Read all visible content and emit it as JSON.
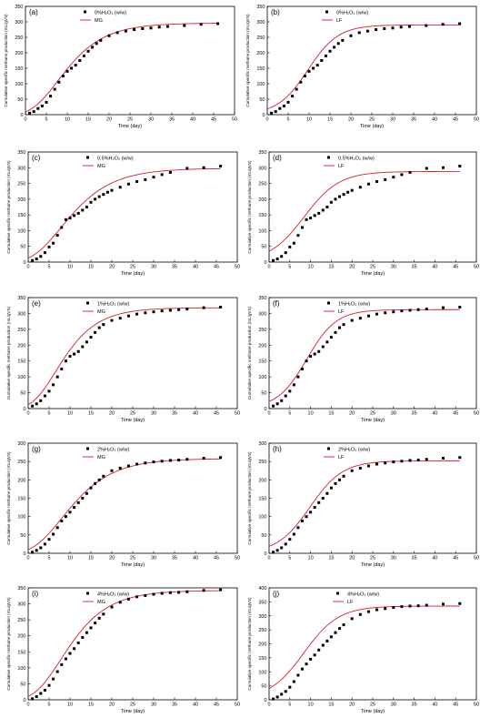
{
  "figure": {
    "xlabel": "Time (day)",
    "ylabel": "Cumulative specific methane production (mL/gVS)",
    "x_ticks": [
      "0",
      "5",
      "10",
      "15",
      "20",
      "25",
      "30",
      "35",
      "40",
      "45",
      "50"
    ],
    "colors": {
      "data": "#000000",
      "fit": "#d0202a",
      "axis": "#000000"
    }
  },
  "chart_data": [
    {
      "type": "scatter",
      "panel_label": "(a)",
      "title": "",
      "xlabel": "Time (day)",
      "ylabel": "Cumulative specific methane production (mL/gVS)",
      "xlim": [
        0,
        50
      ],
      "ylim": [
        0,
        350
      ],
      "y_ticks": [
        0,
        50,
        100,
        150,
        200,
        250,
        300,
        350
      ],
      "legend": {
        "data_label": "0%H₂O₂ (w/w)",
        "fit_label": "MG",
        "position": "top-right"
      },
      "series": [
        {
          "name": "0%H₂O₂ (w/w)",
          "style": "markers",
          "x": [
            1,
            2,
            3,
            4,
            5,
            6,
            7,
            8,
            9,
            10,
            11,
            12,
            13,
            14,
            15,
            16,
            17,
            18,
            20,
            22,
            24,
            26,
            28,
            30,
            32,
            34,
            38,
            42,
            46
          ],
          "y": [
            5,
            10,
            20,
            28,
            40,
            60,
            82,
            105,
            125,
            140,
            150,
            160,
            175,
            190,
            205,
            218,
            230,
            240,
            255,
            265,
            270,
            275,
            278,
            280,
            283,
            285,
            288,
            292,
            294
          ]
        },
        {
          "name": "MG",
          "style": "line",
          "model": "gompertz",
          "params": {
            "P": 296,
            "Rm": 17.5,
            "lambda": 1.5
          }
        }
      ]
    },
    {
      "type": "scatter",
      "panel_label": "(b)",
      "title": "",
      "xlabel": "Time (day)",
      "ylabel": "Cumulative specific methane production (mL/gVS)",
      "xlim": [
        0,
        50
      ],
      "ylim": [
        0,
        350
      ],
      "y_ticks": [
        0,
        50,
        100,
        150,
        200,
        250,
        300,
        350
      ],
      "legend": {
        "data_label": "0%H₂O₂ (w/w)",
        "fit_label": "LF",
        "position": "top-right"
      },
      "series": [
        {
          "name": "0%H₂O₂ (w/w)",
          "style": "markers",
          "x": [
            1,
            2,
            3,
            4,
            5,
            6,
            7,
            8,
            9,
            10,
            11,
            12,
            13,
            14,
            15,
            16,
            17,
            18,
            20,
            22,
            24,
            26,
            28,
            30,
            32,
            34,
            38,
            42,
            46
          ],
          "y": [
            5,
            10,
            20,
            28,
            40,
            60,
            82,
            105,
            125,
            140,
            150,
            160,
            175,
            190,
            205,
            218,
            230,
            240,
            255,
            265,
            270,
            275,
            278,
            280,
            283,
            285,
            288,
            292,
            294
          ]
        },
        {
          "name": "LF",
          "style": "line",
          "model": "logistic",
          "params": {
            "P": 290,
            "Rm": 20,
            "lambda": 2.5
          }
        }
      ]
    },
    {
      "type": "scatter",
      "panel_label": "(c)",
      "title": "",
      "xlabel": "Time (day)",
      "ylabel": "Cumulative specific methane production (mL/gVS)",
      "xlim": [
        0,
        50
      ],
      "ylim": [
        0,
        350
      ],
      "y_ticks": [
        0,
        50,
        100,
        150,
        200,
        250,
        300,
        350
      ],
      "legend": {
        "data_label": "0.5%H₂O₂ (w/w)",
        "fit_label": "MG",
        "position": "top-right"
      },
      "series": [
        {
          "name": "0.5%H₂O₂ (w/w)",
          "style": "markers",
          "x": [
            1,
            2,
            3,
            4,
            5,
            6,
            7,
            8,
            9,
            10,
            11,
            12,
            13,
            14,
            15,
            16,
            17,
            18,
            19,
            20,
            22,
            24,
            26,
            28,
            30,
            32,
            34,
            38,
            42,
            46
          ],
          "y": [
            5,
            10,
            18,
            30,
            48,
            60,
            85,
            110,
            135,
            140,
            148,
            155,
            165,
            175,
            190,
            200,
            208,
            215,
            222,
            228,
            238,
            248,
            256,
            262,
            270,
            278,
            285,
            298,
            300,
            305
          ]
        },
        {
          "name": "MG",
          "style": "line",
          "model": "gompertz",
          "params": {
            "P": 298,
            "Rm": 16,
            "lambda": 1.0
          }
        }
      ]
    },
    {
      "type": "scatter",
      "panel_label": "(d)",
      "title": "",
      "xlabel": "Time (day)",
      "ylabel": "Cumulative specific methane production (mL/gVS)",
      "xlim": [
        0,
        50
      ],
      "ylim": [
        0,
        350
      ],
      "y_ticks": [
        0,
        50,
        100,
        150,
        200,
        250,
        300,
        350
      ],
      "legend": {
        "data_label": "0.5%H₂O₂ (w/w)",
        "fit_label": "LF",
        "position": "top-right"
      },
      "series": [
        {
          "name": "0.5%H₂O₂ (w/w)",
          "style": "markers",
          "x": [
            1,
            2,
            3,
            4,
            5,
            6,
            7,
            8,
            9,
            10,
            11,
            12,
            13,
            14,
            15,
            16,
            17,
            18,
            19,
            20,
            22,
            24,
            26,
            28,
            30,
            32,
            34,
            38,
            42,
            46
          ],
          "y": [
            5,
            10,
            18,
            30,
            48,
            60,
            85,
            110,
            135,
            140,
            148,
            155,
            165,
            175,
            190,
            200,
            208,
            215,
            222,
            228,
            238,
            248,
            256,
            262,
            270,
            278,
            285,
            298,
            300,
            305
          ]
        },
        {
          "name": "LF",
          "style": "line",
          "model": "logistic",
          "params": {
            "P": 288,
            "Rm": 17,
            "lambda": 0.0
          }
        }
      ]
    },
    {
      "type": "scatter",
      "panel_label": "(e)",
      "title": "",
      "xlabel": "Time (day)",
      "ylabel": "Cumulative specific methane production (mL/gVS)",
      "xlim": [
        0,
        50
      ],
      "ylim": [
        0,
        350
      ],
      "y_ticks": [
        0,
        50,
        100,
        150,
        200,
        250,
        300,
        350
      ],
      "legend": {
        "data_label": "1%H₂O₂ (w/w)",
        "fit_label": "MG",
        "position": "top-right"
      },
      "series": [
        {
          "name": "1%H₂O₂ (w/w)",
          "style": "markers",
          "x": [
            1,
            2,
            3,
            4,
            5,
            6,
            7,
            8,
            9,
            10,
            11,
            12,
            13,
            14,
            15,
            16,
            17,
            18,
            20,
            22,
            24,
            26,
            28,
            30,
            32,
            34,
            36,
            38,
            42,
            46
          ],
          "y": [
            8,
            15,
            25,
            40,
            55,
            75,
            100,
            125,
            150,
            165,
            172,
            180,
            195,
            210,
            225,
            240,
            255,
            265,
            278,
            285,
            292,
            298,
            302,
            305,
            308,
            310,
            312,
            314,
            318,
            320
          ]
        },
        {
          "name": "MG",
          "style": "line",
          "model": "gompertz",
          "params": {
            "P": 318,
            "Rm": 21,
            "lambda": 1.0
          }
        }
      ]
    },
    {
      "type": "scatter",
      "panel_label": "(f)",
      "title": "",
      "xlabel": "Time (day)",
      "ylabel": "Cumulative specific methane production (mL/gVS)",
      "xlim": [
        0,
        50
      ],
      "ylim": [
        0,
        350
      ],
      "y_ticks": [
        0,
        50,
        100,
        150,
        200,
        250,
        300,
        350
      ],
      "legend": {
        "data_label": "1%H₂O₂ (w/w)",
        "fit_label": "LF",
        "position": "top-right"
      },
      "series": [
        {
          "name": "1%H₂O₂ (w/w)",
          "style": "markers",
          "x": [
            1,
            2,
            3,
            4,
            5,
            6,
            7,
            8,
            9,
            10,
            11,
            12,
            13,
            14,
            15,
            16,
            17,
            18,
            20,
            22,
            24,
            26,
            28,
            30,
            32,
            34,
            36,
            38,
            42,
            46
          ],
          "y": [
            8,
            15,
            25,
            40,
            55,
            75,
            100,
            125,
            150,
            165,
            172,
            180,
            195,
            210,
            225,
            240,
            255,
            265,
            278,
            285,
            292,
            298,
            302,
            305,
            308,
            310,
            312,
            314,
            318,
            320
          ]
        },
        {
          "name": "LF",
          "style": "line",
          "model": "logistic",
          "params": {
            "P": 312,
            "Rm": 22,
            "lambda": 2.0
          }
        }
      ]
    },
    {
      "type": "scatter",
      "panel_label": "(g)",
      "title": "",
      "xlabel": "Time (day)",
      "ylabel": "Cumulative specific methane production (mL/gVS)",
      "xlim": [
        0,
        50
      ],
      "ylim": [
        0,
        300
      ],
      "y_ticks": [
        0,
        50,
        100,
        150,
        200,
        250,
        300
      ],
      "legend": {
        "data_label": "2%H₂O₂ (w/w)",
        "fit_label": "MG",
        "position": "top-right"
      },
      "series": [
        {
          "name": "2%H₂O₂ (w/w)",
          "style": "markers",
          "x": [
            1,
            2,
            3,
            4,
            5,
            6,
            7,
            8,
            9,
            10,
            11,
            12,
            13,
            14,
            15,
            16,
            17,
            18,
            20,
            22,
            24,
            26,
            28,
            30,
            32,
            34,
            36,
            38,
            42,
            46
          ],
          "y": [
            3,
            8,
            15,
            25,
            38,
            52,
            70,
            88,
            100,
            112,
            125,
            138,
            150,
            163,
            178,
            190,
            200,
            210,
            225,
            232,
            238,
            243,
            246,
            249,
            251,
            253,
            254,
            256,
            259,
            261
          ]
        },
        {
          "name": "MG",
          "style": "line",
          "model": "gompertz",
          "params": {
            "P": 258,
            "Rm": 14,
            "lambda": 1.2
          }
        }
      ]
    },
    {
      "type": "scatter",
      "panel_label": "(h)",
      "title": "",
      "xlabel": "Time (day)",
      "ylabel": "Cumulative specific methane production (mL/gVS)",
      "xlim": [
        0,
        50
      ],
      "ylim": [
        0,
        300
      ],
      "y_ticks": [
        0,
        50,
        100,
        150,
        200,
        250,
        300
      ],
      "legend": {
        "data_label": "2%H₂O₂ (w/w)",
        "fit_label": "LF",
        "position": "top-right"
      },
      "series": [
        {
          "name": "2%H₂O₂ (w/w)",
          "style": "markers",
          "x": [
            1,
            2,
            3,
            4,
            5,
            6,
            7,
            8,
            9,
            10,
            11,
            12,
            13,
            14,
            15,
            16,
            17,
            18,
            20,
            22,
            24,
            26,
            28,
            30,
            32,
            34,
            36,
            38,
            42,
            46
          ],
          "y": [
            3,
            8,
            15,
            25,
            38,
            52,
            70,
            88,
            100,
            112,
            125,
            138,
            150,
            163,
            178,
            190,
            200,
            210,
            225,
            232,
            238,
            243,
            246,
            249,
            251,
            253,
            254,
            256,
            259,
            261
          ]
        },
        {
          "name": "LF",
          "style": "line",
          "model": "logistic",
          "params": {
            "P": 252,
            "Rm": 16,
            "lambda": 2.0
          }
        }
      ]
    },
    {
      "type": "scatter",
      "panel_label": "(i)",
      "title": "",
      "xlabel": "Time (day)",
      "ylabel": "Cumulative specific methane production (mL/gVS)",
      "xlim": [
        0,
        50
      ],
      "ylim": [
        0,
        350
      ],
      "y_ticks": [
        0,
        50,
        100,
        150,
        200,
        250,
        300,
        350
      ],
      "legend": {
        "data_label": "4%H₂O₂ (w/w)",
        "fit_label": "MG",
        "position": "top-right"
      },
      "series": [
        {
          "name": "4%H₂O₂ (w/w)",
          "style": "markers",
          "x": [
            1,
            2,
            3,
            4,
            5,
            6,
            7,
            8,
            9,
            10,
            11,
            12,
            13,
            14,
            15,
            16,
            17,
            18,
            20,
            22,
            24,
            26,
            28,
            30,
            32,
            34,
            36,
            38,
            42,
            46
          ],
          "y": [
            3,
            10,
            20,
            30,
            45,
            65,
            88,
            110,
            128,
            145,
            160,
            178,
            195,
            210,
            225,
            240,
            255,
            268,
            290,
            305,
            315,
            322,
            326,
            330,
            333,
            335,
            336,
            338,
            342,
            344
          ]
        },
        {
          "name": "MG",
          "style": "line",
          "model": "gompertz",
          "params": {
            "P": 342,
            "Rm": 20,
            "lambda": 1.5
          }
        }
      ]
    },
    {
      "type": "scatter",
      "panel_label": "(j)",
      "title": "",
      "xlabel": "Time (day)",
      "ylabel": "Cumulative specific methane production (mL/gVS)",
      "xlim": [
        0,
        50
      ],
      "ylim": [
        0,
        400
      ],
      "y_ticks": [
        0,
        50,
        100,
        150,
        200,
        250,
        300,
        350,
        400
      ],
      "legend": {
        "data_label": "4%H₂O₂ (w/w)",
        "fit_label": "LF",
        "position": "top-left"
      },
      "series": [
        {
          "name": "4%H₂O₂ (w/w)",
          "style": "markers",
          "x": [
            1,
            2,
            3,
            4,
            5,
            6,
            7,
            8,
            9,
            10,
            11,
            12,
            13,
            14,
            15,
            16,
            17,
            18,
            20,
            22,
            24,
            26,
            28,
            30,
            32,
            34,
            36,
            38,
            42,
            46
          ],
          "y": [
            3,
            10,
            20,
            30,
            45,
            65,
            88,
            110,
            128,
            145,
            160,
            178,
            195,
            210,
            225,
            240,
            255,
            268,
            290,
            305,
            315,
            322,
            326,
            330,
            333,
            335,
            336,
            338,
            342,
            344
          ]
        },
        {
          "name": "LF",
          "style": "line",
          "model": "logistic",
          "params": {
            "P": 335,
            "Rm": 20,
            "lambda": 0.0
          }
        }
      ]
    }
  ]
}
